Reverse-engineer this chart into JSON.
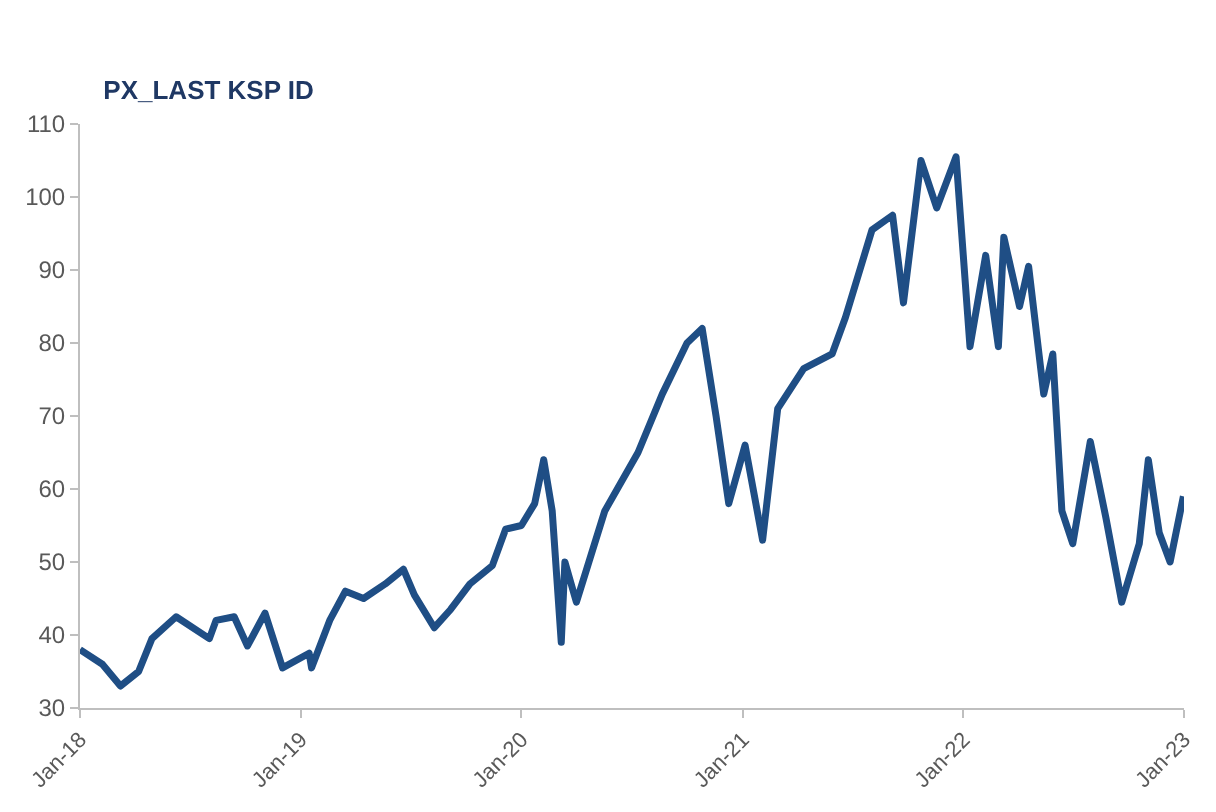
{
  "chart_data": {
    "type": "line",
    "title": "PX_LAST KSP ID",
    "x": [
      "2018-01-01",
      "2018-02-07",
      "2018-03-09",
      "2018-04-08",
      "2018-04-30",
      "2018-06-09",
      "2018-08-03",
      "2018-08-14",
      "2018-09-13",
      "2018-10-05",
      "2018-11-03",
      "2018-12-02",
      "2019-01-15",
      "2019-01-19",
      "2019-02-18",
      "2019-03-16",
      "2019-04-15",
      "2019-05-21",
      "2019-06-20",
      "2019-07-08",
      "2019-08-10",
      "2019-09-06",
      "2019-10-08",
      "2019-11-14",
      "2019-12-06",
      "2020-01-01",
      "2020-01-23",
      "2020-02-07",
      "2020-02-21",
      "2020-03-07",
      "2020-03-13",
      "2020-04-01",
      "2020-05-18",
      "2020-07-12",
      "2020-08-21",
      "2020-10-01",
      "2020-10-26",
      "2020-11-18",
      "2020-12-09",
      "2021-01-05",
      "2021-02-03",
      "2021-02-28",
      "2021-04-12",
      "2021-05-29",
      "2021-06-20",
      "2021-08-03",
      "2021-09-06",
      "2021-09-24",
      "2021-10-23",
      "2021-11-18",
      "2021-12-20",
      "2022-01-12",
      "2022-02-07",
      "2022-02-28",
      "2022-03-09",
      "2022-04-04",
      "2022-04-19",
      "2022-05-14",
      "2022-05-29",
      "2022-06-13",
      "2022-07-01",
      "2022-07-30",
      "2022-08-25",
      "2022-09-20",
      "2022-10-19",
      "2022-11-03",
      "2022-11-21",
      "2022-12-09",
      "2022-12-31"
    ],
    "series": [
      {
        "color": "#1f4e85",
        "values": [
          38,
          36,
          33,
          35,
          39.5,
          42.5,
          39.5,
          42,
          42.5,
          38.5,
          43,
          35.5,
          37.5,
          35.5,
          42,
          46,
          45,
          47,
          49,
          45.5,
          41,
          43.5,
          47,
          49.5,
          54.5,
          55,
          58,
          64,
          57,
          39,
          50,
          44.5,
          57,
          65,
          73,
          80,
          82,
          70,
          58,
          66,
          53,
          71,
          76.5,
          78.5,
          83.5,
          95.5,
          97.5,
          85.5,
          105,
          98.5,
          105.5,
          79.5,
          92,
          79.5,
          94.5,
          85,
          90.5,
          73,
          78.5,
          57,
          52.5,
          66.5,
          56,
          44.5,
          52.5,
          64,
          54,
          50,
          59
        ]
      }
    ],
    "xlim": [
      "2018-01-01",
      "2023-01-01"
    ],
    "xticks": [
      {
        "value": "2018-01-01",
        "label": "Jan-18"
      },
      {
        "value": "2019-01-01",
        "label": "Jan-19"
      },
      {
        "value": "2020-01-01",
        "label": "Jan-20"
      },
      {
        "value": "2021-01-01",
        "label": "Jan-21"
      },
      {
        "value": "2022-01-01",
        "label": "Jan-22"
      },
      {
        "value": "2023-01-01",
        "label": "Jan-23"
      }
    ],
    "ylim": [
      30,
      110
    ],
    "yticks": [
      30,
      40,
      50,
      60,
      70,
      80,
      90,
      100,
      110
    ],
    "marker": "none",
    "line_style": "solid"
  }
}
